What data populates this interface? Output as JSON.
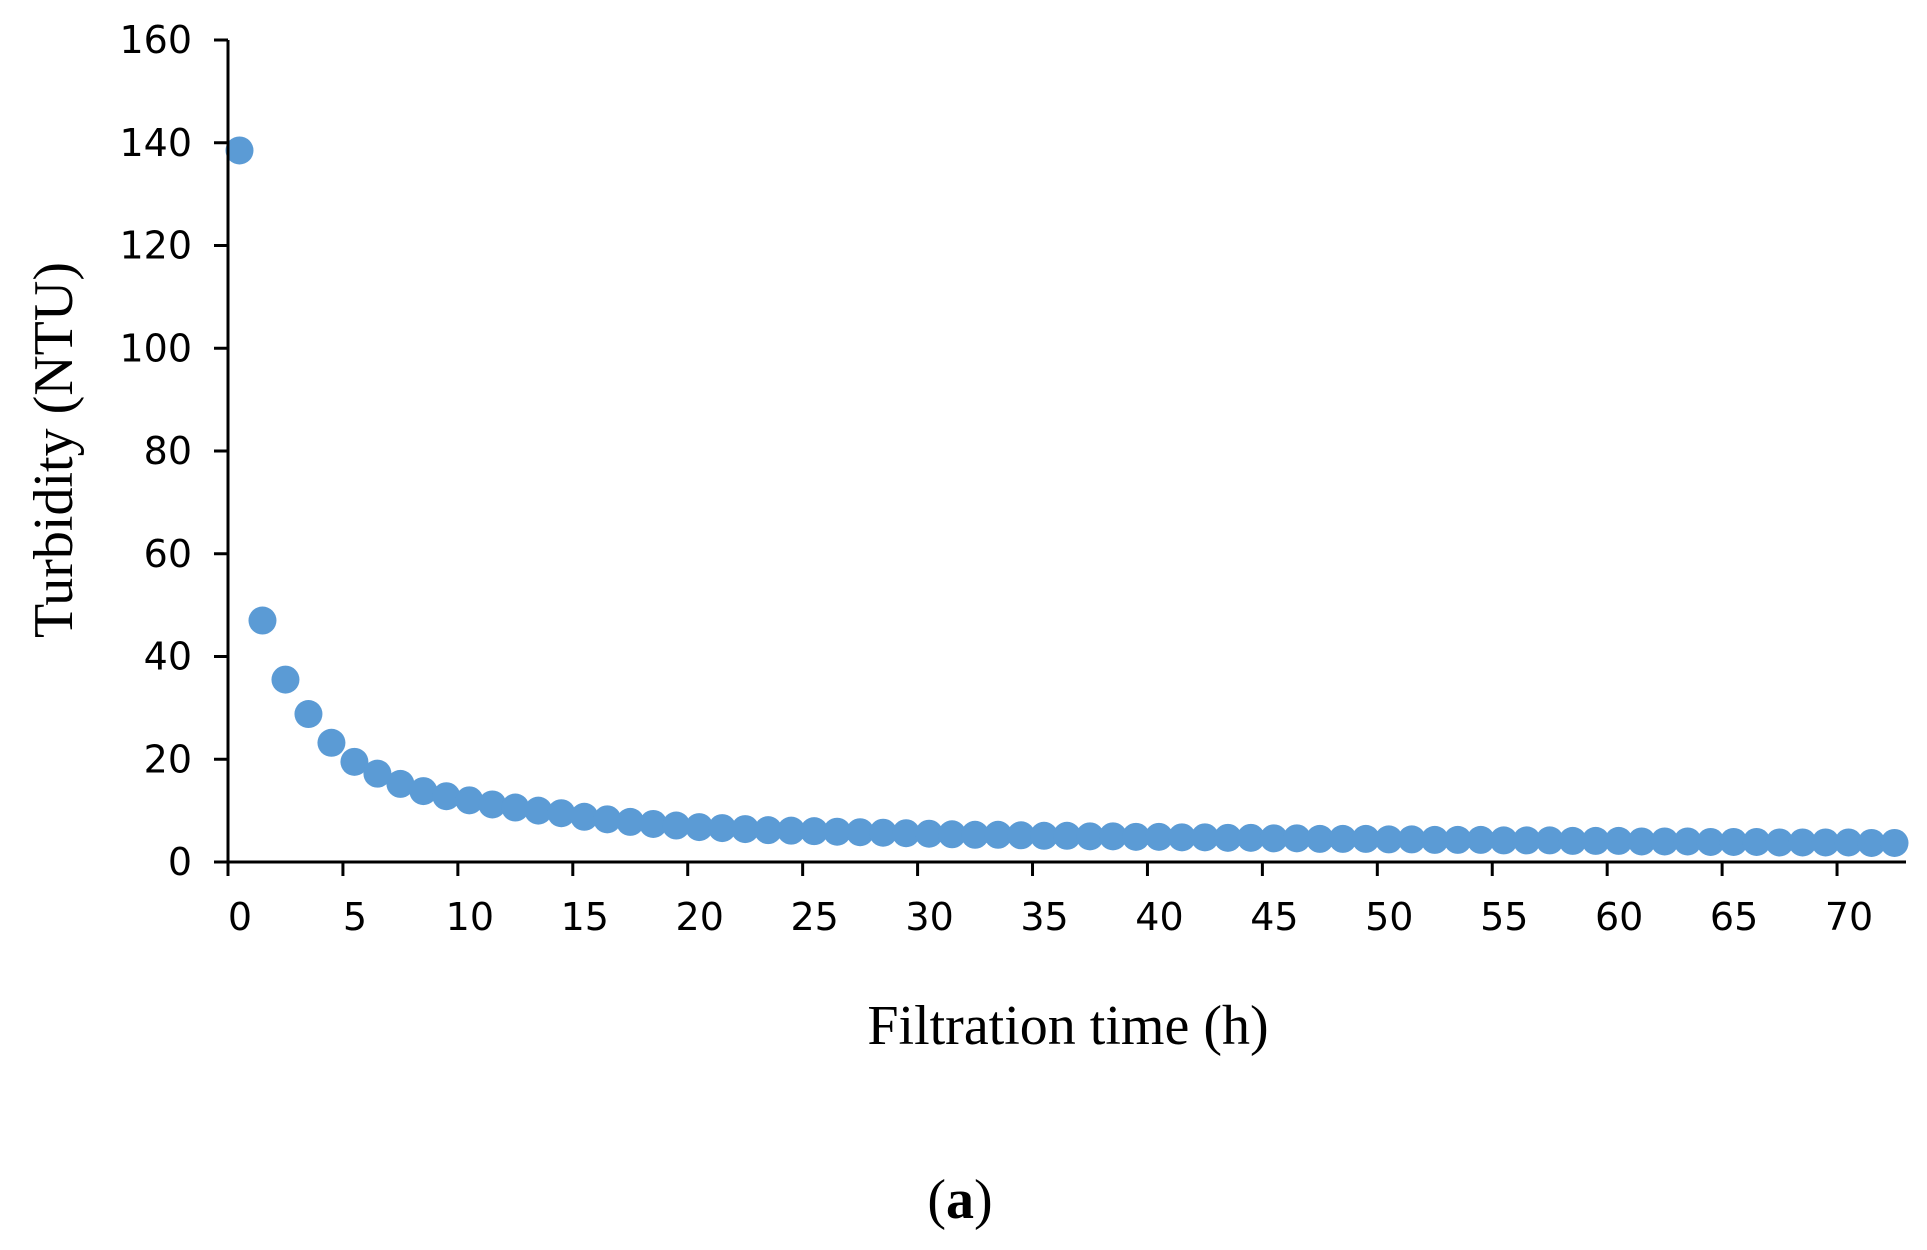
{
  "chart_data": {
    "type": "scatter",
    "xlabel": "Filtration time (h)",
    "ylabel": "Turbidity (NTU)",
    "xlim": [
      0,
      73
    ],
    "ylim": [
      0,
      160
    ],
    "xticks": [
      0,
      5,
      10,
      15,
      20,
      25,
      30,
      35,
      40,
      45,
      50,
      55,
      60,
      65,
      70
    ],
    "yticks": [
      0,
      20,
      40,
      60,
      80,
      100,
      120,
      140,
      160
    ],
    "grid": false,
    "marker_color": "#5B9BD5",
    "series": [
      {
        "x": [
          0.5,
          1.5,
          2.5,
          3.5,
          4.5,
          5.5,
          6.5,
          7.5,
          8.5,
          9.5,
          10.5,
          11.5,
          12.5,
          13.5,
          14.5,
          15.5,
          16.5,
          17.5,
          18.5,
          19.5,
          20.5,
          21.5,
          22.5,
          23.5,
          24.5,
          25.5,
          26.5,
          27.5,
          28.5,
          29.5,
          30.5,
          31.5,
          32.5,
          33.5,
          34.5,
          35.5,
          36.5,
          37.5,
          38.5,
          39.5,
          40.5,
          41.5,
          42.5,
          43.5,
          44.5,
          45.5,
          46.5,
          47.5,
          48.5,
          49.5,
          50.5,
          51.5,
          52.5,
          53.5,
          54.5,
          55.5,
          56.5,
          57.5,
          58.5,
          59.5,
          60.5,
          61.5,
          62.5,
          63.5,
          64.5,
          65.5,
          66.5,
          67.5,
          68.5,
          69.5,
          70.5,
          71.5,
          72.5
        ],
        "y": [
          138.5,
          47,
          35.5,
          28.8,
          23.2,
          19.5,
          17.2,
          15.2,
          13.8,
          12.8,
          12,
          11.2,
          10.6,
          10,
          9.5,
          8.8,
          8.3,
          7.8,
          7.4,
          7.1,
          6.8,
          6.6,
          6.4,
          6.2,
          6.1,
          6,
          5.9,
          5.8,
          5.7,
          5.6,
          5.5,
          5.4,
          5.3,
          5.3,
          5.2,
          5.1,
          5.1,
          5,
          5,
          4.9,
          4.9,
          4.8,
          4.8,
          4.7,
          4.7,
          4.6,
          4.6,
          4.5,
          4.5,
          4.5,
          4.4,
          4.4,
          4.3,
          4.3,
          4.3,
          4.2,
          4.2,
          4.2,
          4.1,
          4.1,
          4.1,
          4,
          4,
          4,
          3.9,
          3.9,
          3.9,
          3.8,
          3.8,
          3.8,
          3.8,
          3.7,
          3.7
        ]
      }
    ]
  },
  "panel_label": {
    "open": "(",
    "letter": "a",
    "close": ")"
  }
}
